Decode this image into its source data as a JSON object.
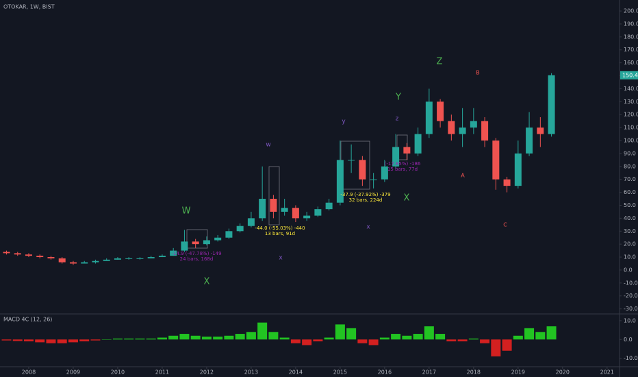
{
  "chart_data": [
    {
      "type": "candlestick",
      "title": "OTOKAR, 1W, BIST",
      "x": [
        2007.5,
        2007.75,
        2008,
        2008.25,
        2008.5,
        2008.75,
        2009,
        2009.25,
        2009.5,
        2009.75,
        2010,
        2010.25,
        2010.5,
        2010.75,
        2011,
        2011.25,
        2011.5,
        2011.75,
        2012,
        2012.25,
        2012.5,
        2012.75,
        2013,
        2013.25,
        2013.5,
        2013.75,
        2014,
        2014.25,
        2014.5,
        2014.75,
        2015,
        2015.25,
        2015.5,
        2015.75,
        2016,
        2016.25,
        2016.5,
        2016.75,
        2017,
        2017.25,
        2017.5,
        2017.75,
        2018,
        2018.25,
        2018.5,
        2018.75,
        2019,
        2019.25,
        2019.5,
        2019.75
      ],
      "open": [
        14,
        13,
        12,
        11,
        10,
        9,
        6,
        5,
        6,
        7,
        8,
        9,
        9,
        9,
        10,
        11,
        15,
        22,
        20,
        23,
        25,
        30,
        34,
        40,
        55,
        45,
        48,
        40,
        42,
        47,
        52,
        85,
        85,
        70,
        70,
        80,
        95,
        90,
        105,
        130,
        115,
        105,
        110,
        115,
        100,
        70,
        65,
        90,
        110,
        105
      ],
      "high": [
        15,
        14,
        13,
        12,
        11,
        10,
        7,
        7,
        8,
        9,
        10,
        10,
        10,
        11,
        12,
        17,
        31,
        24,
        26,
        27,
        32,
        36,
        45,
        80,
        58,
        55,
        50,
        45,
        49,
        55,
        100,
        97,
        88,
        75,
        85,
        105,
        98,
        110,
        140,
        132,
        120,
        125,
        125,
        118,
        102,
        72,
        100,
        122,
        118,
        152
      ],
      "low": [
        12,
        11,
        10,
        9,
        8,
        5,
        4,
        5,
        5,
        7,
        8,
        8,
        8,
        9,
        10,
        11,
        14,
        17,
        19,
        22,
        24,
        29,
        33,
        38,
        40,
        42,
        37,
        38,
        41,
        46,
        50,
        75,
        65,
        63,
        68,
        78,
        85,
        88,
        102,
        110,
        100,
        95,
        105,
        95,
        62,
        60,
        63,
        88,
        95,
        103
      ],
      "close": [
        13,
        12,
        11,
        10,
        9,
        6,
        5,
        6,
        7,
        8,
        9,
        9,
        9,
        10,
        11,
        15,
        22,
        20,
        23,
        25,
        30,
        34,
        40,
        55,
        45,
        48,
        40,
        42,
        47,
        52,
        85,
        85,
        70,
        70,
        80,
        95,
        90,
        105,
        130,
        115,
        105,
        110,
        115,
        100,
        70,
        65,
        90,
        110,
        105,
        150.4
      ],
      "up_color": "#26a69a",
      "down_color": "#ef5350",
      "last_price": 150.4,
      "xlim": [
        2007.354,
        2021.28
      ],
      "xticks": [
        2008,
        2009,
        2010,
        2011,
        2012,
        2013,
        2014,
        2015,
        2016,
        2017,
        2018,
        2019,
        2020,
        2021
      ],
      "ylim": [
        -33.9,
        208.5
      ],
      "yticks": [
        {
          "value": 200,
          "label": "200.0"
        },
        {
          "value": 190,
          "label": "190.0"
        },
        {
          "value": 180,
          "label": "180.0"
        },
        {
          "value": 170,
          "label": "170.0"
        },
        {
          "value": 160,
          "label": "160.0"
        },
        {
          "value": 150,
          "label": "150.0"
        },
        {
          "value": 140,
          "label": "140.0"
        },
        {
          "value": 130,
          "label": "130.0"
        },
        {
          "value": 120,
          "label": "120.0"
        },
        {
          "value": 110,
          "label": "110.0"
        },
        {
          "value": 100,
          "label": "100.0"
        },
        {
          "value": 90,
          "label": "90.0"
        },
        {
          "value": 80,
          "label": "80.0"
        },
        {
          "value": 70,
          "label": "70.0"
        },
        {
          "value": 60,
          "label": "60.0"
        },
        {
          "value": 50,
          "label": "50.0"
        },
        {
          "value": 40,
          "label": "40.0"
        },
        {
          "value": 30,
          "label": "30.0"
        },
        {
          "value": 20,
          "label": "20.0"
        },
        {
          "value": 10,
          "label": "10.0"
        },
        {
          "value": 0,
          "label": "0.0"
        },
        {
          "value": -10,
          "label": "-10.0"
        },
        {
          "value": -20,
          "label": "-20.0"
        },
        {
          "value": -30,
          "label": "-30.0"
        }
      ],
      "annotations": [
        {
          "text": "W",
          "color": "#4caf50"
        },
        {
          "text": "X",
          "color": "#4caf50"
        },
        {
          "text": "w",
          "color": "#7e57c2"
        },
        {
          "text": "x",
          "color": "#7e57c2"
        },
        {
          "text": "y",
          "color": "#7e57c2"
        },
        {
          "text": "x",
          "color": "#7e57c2"
        },
        {
          "text": "z",
          "color": "#7e57c2"
        },
        {
          "text": "Y",
          "color": "#4caf50"
        },
        {
          "text": "X",
          "color": "#4caf50"
        },
        {
          "text": "Z",
          "color": "#4caf50"
        },
        {
          "text": "B",
          "color": "#ef5350"
        },
        {
          "text": "A",
          "color": "#ef5350"
        },
        {
          "text": "C",
          "color": "#ef5350"
        },
        {
          "text": "-14.9 (-47.78%) -149",
          "color": "#9c27b0"
        },
        {
          "text": "24 bars, 168d",
          "color": "#9c27b0"
        },
        {
          "text": "-44.0 (-55.03%) -440",
          "color": "#ffeb3b"
        },
        {
          "text": "13 bars, 91d",
          "color": "#ffeb3b"
        },
        {
          "text": "-37.9 (-37.92%) -379",
          "color": "#ffeb3b"
        },
        {
          "text": "32 bars, 224d",
          "color": "#ffeb3b"
        },
        {
          "text": "(-17.85%) -186",
          "color": "#9c27b0"
        },
        {
          "text": "15 bars, 77d",
          "color": "#9c27b0"
        }
      ]
    },
    {
      "type": "bar",
      "title": "MACD 4C (12, 26)",
      "x": [
        2007.5,
        2007.75,
        2008,
        2008.25,
        2008.5,
        2008.75,
        2009,
        2009.25,
        2009.5,
        2009.75,
        2010,
        2010.25,
        2010.5,
        2010.75,
        2011,
        2011.25,
        2011.5,
        2011.75,
        2012,
        2012.25,
        2012.5,
        2012.75,
        2013,
        2013.25,
        2013.5,
        2013.75,
        2014,
        2014.25,
        2014.5,
        2014.75,
        2015,
        2015.25,
        2015.5,
        2015.75,
        2016,
        2016.25,
        2016.5,
        2016.75,
        2017,
        2017.25,
        2017.5,
        2017.75,
        2018,
        2018.25,
        2018.5,
        2018.75,
        2019,
        2019.25,
        2019.5,
        2019.75
      ],
      "values": [
        -0.5,
        -0.8,
        -1,
        -1.5,
        -2,
        -2,
        -1.5,
        -1,
        -0.5,
        0,
        0.5,
        0.5,
        0.5,
        0.5,
        1,
        2,
        3,
        2,
        1.5,
        1.5,
        2,
        3,
        4,
        9,
        4,
        1,
        -2,
        -3,
        -1,
        1,
        8,
        6,
        -2,
        -3,
        1,
        3,
        2,
        3,
        7,
        3,
        -1,
        -1,
        0.5,
        -2,
        -9,
        -6,
        2,
        6,
        4,
        7
      ],
      "positive_color": "#22c322",
      "negative_color": "#d32020",
      "ylim": [
        -14.5,
        13.6
      ],
      "yticks": [
        {
          "value": 10,
          "label": "10.0"
        },
        {
          "value": 0,
          "label": "0.0"
        },
        {
          "value": -10,
          "label": "-10.0"
        }
      ]
    }
  ]
}
